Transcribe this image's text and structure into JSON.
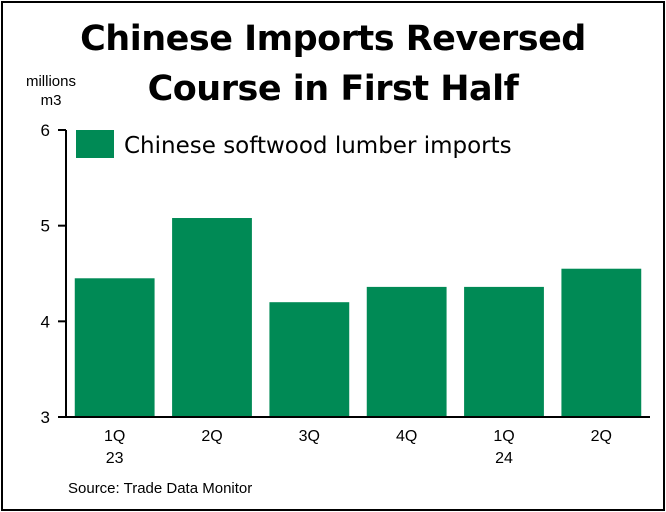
{
  "chart_data": {
    "type": "bar",
    "title_line1": "Chinese Imports Reversed",
    "title_line2": "Course in First Half",
    "units_line1": "millions",
    "units_line2": "m3",
    "categories": [
      {
        "q": "1Q",
        "year": "23"
      },
      {
        "q": "2Q",
        "year": ""
      },
      {
        "q": "3Q",
        "year": ""
      },
      {
        "q": "4Q",
        "year": ""
      },
      {
        "q": "1Q",
        "year": "24"
      },
      {
        "q": "2Q",
        "year": ""
      }
    ],
    "series": [
      {
        "name": "Chinese softwood lumber imports",
        "color": "#008a55",
        "values": [
          4.45,
          5.08,
          4.2,
          4.36,
          4.36,
          4.55
        ]
      }
    ],
    "ylim": [
      3,
      6
    ],
    "yticks": [
      "3",
      "4",
      "5",
      "6"
    ],
    "grid": false,
    "legend_position": "top-left",
    "source": "Source: Trade Data Monitor"
  }
}
